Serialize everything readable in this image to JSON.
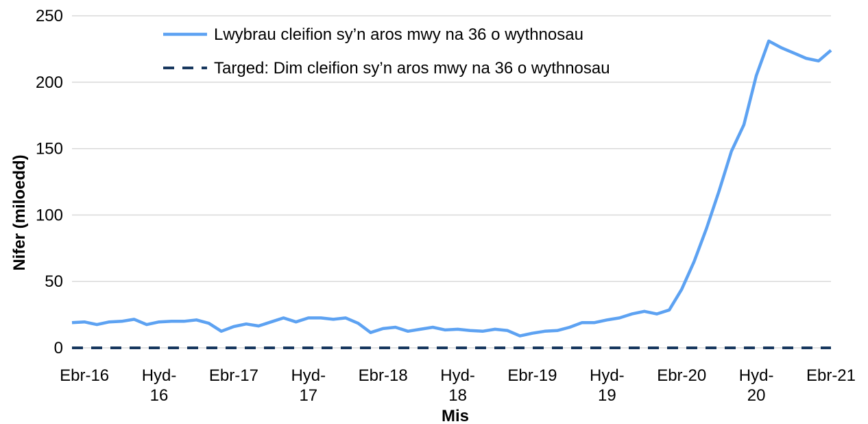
{
  "chart_data": {
    "type": "line",
    "x_label": "Mis",
    "y_label": "Nifer (miloedd)",
    "categories": [
      null,
      "Ebr-16",
      null,
      null,
      null,
      null,
      null,
      "Hyd-\n16",
      null,
      null,
      null,
      null,
      null,
      "Ebr-17",
      null,
      null,
      null,
      null,
      null,
      "Hyd-\n17",
      null,
      null,
      null,
      null,
      null,
      "Ebr-18",
      null,
      null,
      null,
      null,
      null,
      "Hyd-\n18",
      null,
      null,
      null,
      null,
      null,
      "Ebr-19",
      null,
      null,
      null,
      null,
      null,
      "Hyd-\n19",
      null,
      null,
      null,
      null,
      null,
      "Ebr-20",
      null,
      null,
      null,
      null,
      null,
      "Hyd-\n20",
      null,
      null,
      null,
      null,
      null,
      "Ebr-21"
    ],
    "series": [
      {
        "name": "Lwybrau cleifion sy’n aros mwy na 36 o wythnosau",
        "color": "#5da2f2",
        "dash": false,
        "values": [
          19,
          19.5,
          17.5,
          19.5,
          20,
          21.5,
          17.5,
          19.5,
          20,
          20,
          21,
          18.5,
          12.5,
          16,
          18,
          16.5,
          19.5,
          22.5,
          19.5,
          22.5,
          22.5,
          21.5,
          22.5,
          18.5,
          11.5,
          14.5,
          15.5,
          12.5,
          14,
          15.5,
          13.5,
          14,
          13,
          12.5,
          14,
          13,
          9,
          11,
          12.5,
          13,
          15.5,
          19,
          19,
          21,
          22.5,
          25.5,
          27.5,
          25.5,
          28.5,
          44,
          65,
          90,
          118,
          148,
          168,
          205,
          231,
          226,
          222,
          218,
          216,
          224
        ]
      },
      {
        "name": "Targed: Dim cleifion sy’n aros mwy na 36 o wythnosau",
        "color": "#17375e",
        "dash": true,
        "values": [
          0,
          0,
          0,
          0,
          0,
          0,
          0,
          0,
          0,
          0,
          0,
          0,
          0,
          0,
          0,
          0,
          0,
          0,
          0,
          0,
          0,
          0,
          0,
          0,
          0,
          0,
          0,
          0,
          0,
          0,
          0,
          0,
          0,
          0,
          0,
          0,
          0,
          0,
          0,
          0,
          0,
          0,
          0,
          0,
          0,
          0,
          0,
          0,
          0,
          0,
          0,
          0,
          0,
          0,
          0,
          0,
          0,
          0,
          0,
          0,
          0,
          0
        ]
      }
    ],
    "ylim": [
      0,
      250
    ],
    "yticks": [
      0,
      50,
      100,
      150,
      200,
      250
    ],
    "grid": true
  }
}
